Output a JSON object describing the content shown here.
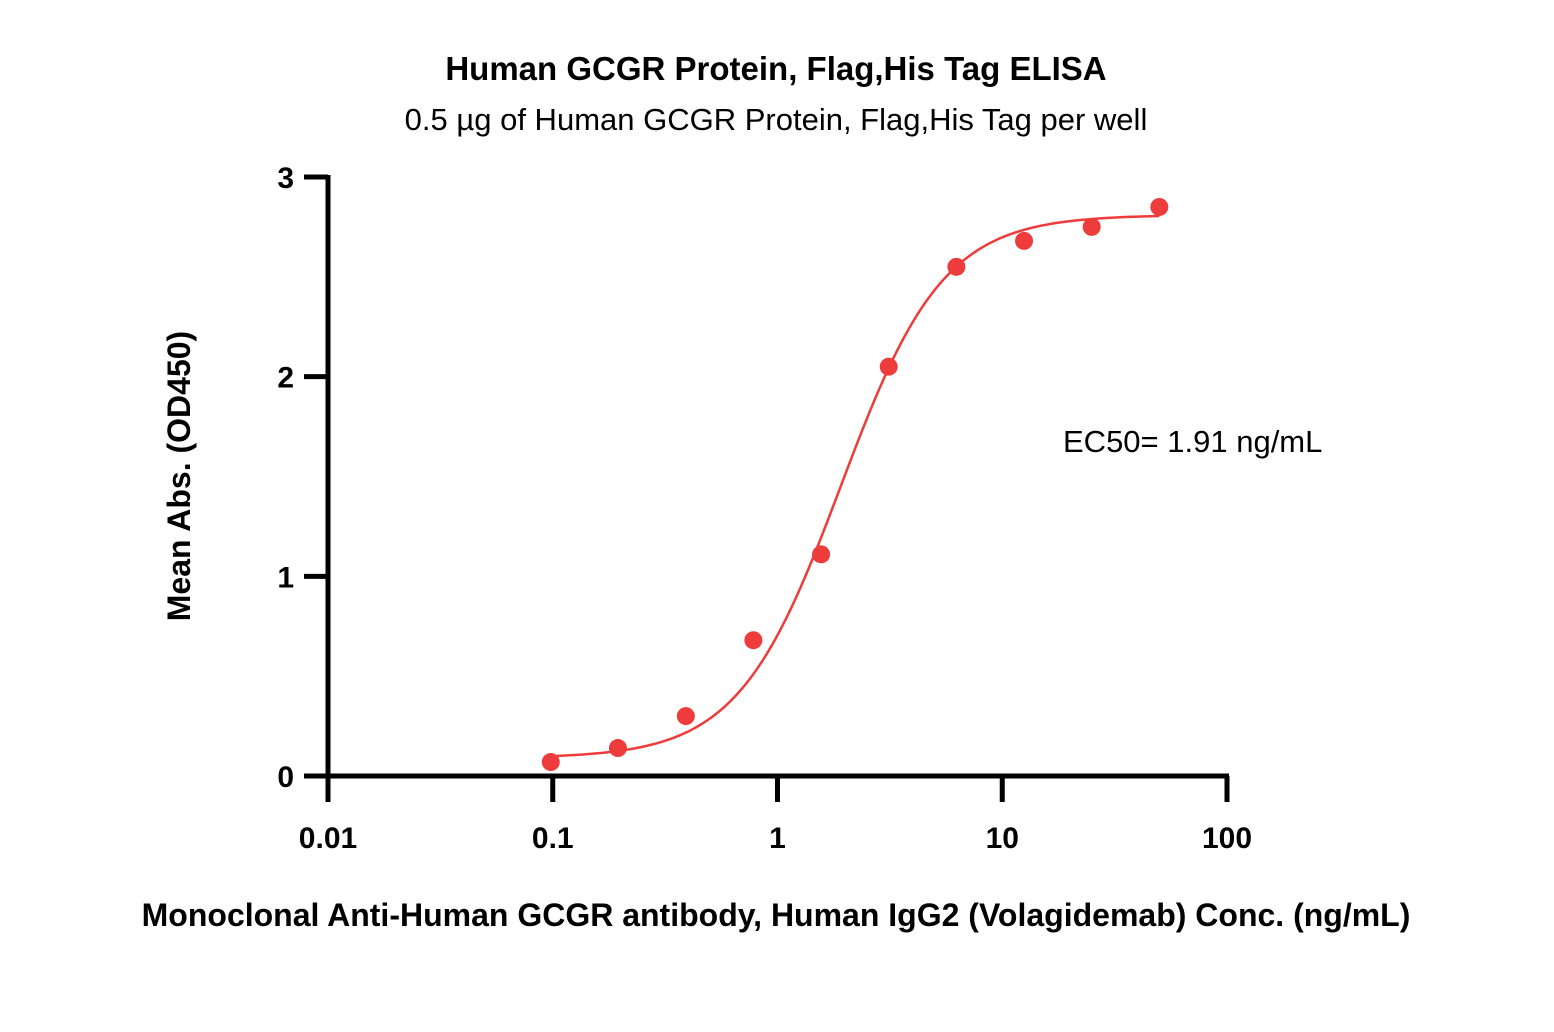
{
  "chart_data": {
    "type": "scatter",
    "title": "Human GCGR Protein, Flag,His Tag ELISA",
    "subtitle": "0.5 µg of Human GCGR Protein, Flag,His Tag per well",
    "xlabel": "Monoclonal Anti-Human GCGR antibody, Human IgG2 (Volagidemab) Conc. (ng/mL)",
    "ylabel": "Mean Abs. (OD450)",
    "xscale": "log",
    "xlim": [
      0.01,
      100
    ],
    "ylim": [
      0,
      3
    ],
    "xticks": [
      0.01,
      0.1,
      1,
      10,
      100
    ],
    "xtick_labels": [
      "0.01",
      "0.1",
      "1",
      "10",
      "100"
    ],
    "yticks": [
      0,
      1,
      2,
      3
    ],
    "ytick_labels": [
      "0",
      "1",
      "2",
      "3"
    ],
    "annotation": "EC50= 1.91 ng/mL",
    "color": "#ee3b3b",
    "grid": false,
    "series": [
      {
        "x": [
          0.098,
          0.195,
          0.391,
          0.781,
          1.563,
          3.125,
          6.25,
          12.5,
          25,
          50
        ],
        "y": [
          0.07,
          0.14,
          0.3,
          0.68,
          1.11,
          2.05,
          2.55,
          2.68,
          2.75,
          2.85
        ]
      }
    ],
    "fit": {
      "model": "4PL",
      "bottom": 0.09,
      "top": 2.81,
      "ec50": 1.91,
      "hill": 1.9
    }
  }
}
